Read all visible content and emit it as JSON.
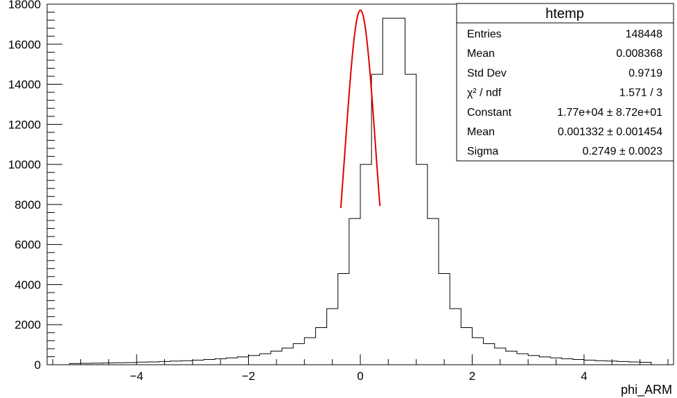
{
  "chart_data": {
    "type": "histogram",
    "title": "",
    "xlabel": "phi_ARM",
    "ylabel": "",
    "xlim": [
      -5.6,
      5.6
    ],
    "ylim": [
      0,
      18000
    ],
    "x_ticks": [
      {
        "value": -4,
        "label": "−4"
      },
      {
        "value": -2,
        "label": "−2"
      },
      {
        "value": 0,
        "label": "0"
      },
      {
        "value": 2,
        "label": "2"
      },
      {
        "value": 4,
        "label": "4"
      }
    ],
    "y_ticks": [
      {
        "value": 0,
        "label": "0"
      },
      {
        "value": 2000,
        "label": "2000"
      },
      {
        "value": 4000,
        "label": "4000"
      },
      {
        "value": 6000,
        "label": "6000"
      },
      {
        "value": 8000,
        "label": "8000"
      },
      {
        "value": 10000,
        "label": "10000"
      },
      {
        "value": 12000,
        "label": "12000"
      },
      {
        "value": 14000,
        "label": "14000"
      },
      {
        "value": 16000,
        "label": "16000"
      },
      {
        "value": 18000,
        "label": "18000"
      }
    ],
    "grid": false,
    "histogram": {
      "bin_edges": [
        -5.2,
        -5.0,
        -4.8,
        -4.6,
        -4.4,
        -4.2,
        -4.0,
        -3.8,
        -3.6,
        -3.4,
        -3.2,
        -3.0,
        -2.8,
        -2.6,
        -2.4,
        -2.2,
        -2.0,
        -1.8,
        -1.6,
        -1.4,
        -1.2,
        -1.0,
        -0.8,
        -0.6,
        -0.4,
        -0.2,
        0.0,
        0.2,
        0.4,
        0.6,
        0.8,
        1.0,
        1.2,
        1.4,
        1.6,
        1.8,
        2.0,
        2.2,
        2.4,
        2.6,
        2.8,
        3.0,
        3.2,
        3.4,
        3.6,
        3.8,
        4.0,
        4.2,
        4.4,
        4.6,
        4.8,
        5.0,
        5.2
      ],
      "counts": [
        60,
        70,
        80,
        90,
        100,
        110,
        130,
        140,
        160,
        180,
        200,
        230,
        260,
        300,
        340,
        390,
        460,
        550,
        680,
        830,
        1050,
        1350,
        1850,
        2800,
        4550,
        7300,
        10000,
        14500,
        17300,
        17300,
        14500,
        10000,
        7300,
        4550,
        2800,
        1850,
        1350,
        1050,
        830,
        680,
        550,
        460,
        390,
        340,
        300,
        260,
        230,
        200,
        180,
        160,
        140,
        120
      ]
    },
    "fit": {
      "function": "gaus",
      "color": "#e00000",
      "constant": 17700,
      "mean": 0.001332,
      "sigma": 0.2749,
      "range": [
        -0.35,
        0.35
      ]
    }
  },
  "stats_box": {
    "title": "htemp",
    "rows": [
      {
        "name": "Entries",
        "value": "148448"
      },
      {
        "name": "Mean",
        "value": "0.008368"
      },
      {
        "name": "Std Dev",
        "value": "0.9719"
      },
      {
        "name": "χ² / ndf",
        "value": "1.571 / 3"
      },
      {
        "name": "Constant",
        "value": "1.77e+04 ± 8.72e+01"
      },
      {
        "name": "Mean",
        "value": "0.001332 ± 0.001454"
      },
      {
        "name": "Sigma",
        "value": "0.2749 ± 0.0023"
      }
    ]
  }
}
